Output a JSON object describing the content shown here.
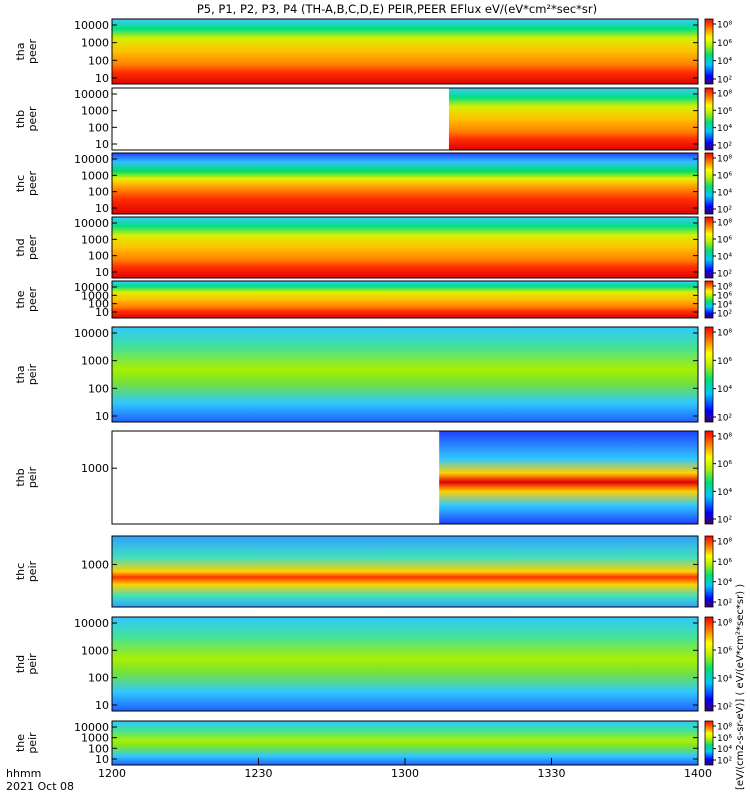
{
  "title": "P5, P1, P2, P3, P4 (TH-A,B,C,D,E) PEIR,PEER EFlux eV/(eV*cm²*sec*sr)",
  "colorbar_label": "[eV/(cm2-s-sr-eV)] ( eV/(eV*cm²*sec*sr) )",
  "x_axis": {
    "var_label": "hhmm",
    "date_label": "2021 Oct 08",
    "ticks": [
      "1200",
      "1230",
      "1300",
      "1330",
      "1400"
    ]
  },
  "chart_data": {
    "type": "heatmap",
    "title": "P5, P1, P2, P3, P4 (TH-A,B,C,D,E) PEIR,PEER EFlux eV/(eV*cm²*sec*sr)",
    "x_range_minutes": [
      0,
      120
    ],
    "x_tick_labels": [
      "1200",
      "1230",
      "1300",
      "1330",
      "1400"
    ],
    "y_scale": "log",
    "colorbar_scale": "log",
    "panels": [
      {
        "probe": "tha",
        "type": "peer",
        "label": [
          "tha",
          "peer"
        ],
        "yticks": [
          "10000",
          "1000",
          "100",
          "10"
        ],
        "cbar_ticks": [
          "10⁸",
          "10⁶",
          "10⁴",
          "10²"
        ],
        "data_start_minutes": 0
      },
      {
        "probe": "thb",
        "type": "peer",
        "label": [
          "thb",
          "peer"
        ],
        "yticks": [
          "10000",
          "1000",
          "100",
          "10"
        ],
        "cbar_ticks": [
          "10⁸",
          "10⁶",
          "10⁴",
          "10²"
        ],
        "data_start_minutes": 69
      },
      {
        "probe": "thc",
        "type": "peer",
        "label": [
          "thc",
          "peer"
        ],
        "yticks": [
          "10000",
          "1000",
          "100",
          "10"
        ],
        "cbar_ticks": [
          "10⁸",
          "10⁶",
          "10⁴",
          "10²"
        ],
        "data_start_minutes": 0
      },
      {
        "probe": "thd",
        "type": "peer",
        "label": [
          "thd",
          "peer"
        ],
        "yticks": [
          "10000",
          "1000",
          "100",
          "10"
        ],
        "cbar_ticks": [
          "10⁸",
          "10⁶",
          "10⁴",
          "10²"
        ],
        "data_start_minutes": 0
      },
      {
        "probe": "the",
        "type": "peer",
        "label": [
          "the",
          "peer"
        ],
        "yticks": [
          "10000",
          "1000",
          "100",
          "10"
        ],
        "cbar_ticks": [
          "10⁸",
          "10⁶",
          "10⁴",
          "10²"
        ],
        "data_start_minutes": 0
      },
      {
        "probe": "tha",
        "type": "peir",
        "label": [
          "tha",
          "peir"
        ],
        "yticks": [
          "10000",
          "1000",
          "100",
          "10"
        ],
        "cbar_ticks": [
          "10⁸",
          "10⁶",
          "10⁴",
          "10²"
        ],
        "data_start_minutes": 0
      },
      {
        "probe": "thb",
        "type": "peir",
        "label": [
          "thb",
          "peir"
        ],
        "yticks": [
          "1000"
        ],
        "cbar_ticks": [
          "10⁸",
          "10⁶",
          "10⁴",
          "10²"
        ],
        "data_start_minutes": 67
      },
      {
        "probe": "thc",
        "type": "peir",
        "label": [
          "thc",
          "peir"
        ],
        "yticks": [
          "1000"
        ],
        "cbar_ticks": [
          "10⁸",
          "10⁶",
          "10⁴",
          "10²"
        ],
        "data_start_minutes": 0
      },
      {
        "probe": "thd",
        "type": "peir",
        "label": [
          "thd",
          "peir"
        ],
        "yticks": [
          "10000",
          "1000",
          "100",
          "10"
        ],
        "cbar_ticks": [
          "10⁸",
          "10⁶",
          "10⁴",
          "10²"
        ],
        "data_start_minutes": 0
      },
      {
        "probe": "the",
        "type": "peir",
        "label": [
          "the",
          "peir"
        ],
        "yticks": [
          "10000",
          "1000",
          "100",
          "10"
        ],
        "cbar_ticks": [
          "10⁸",
          "10⁶",
          "10⁴",
          "10²"
        ],
        "data_start_minutes": 0
      }
    ]
  }
}
